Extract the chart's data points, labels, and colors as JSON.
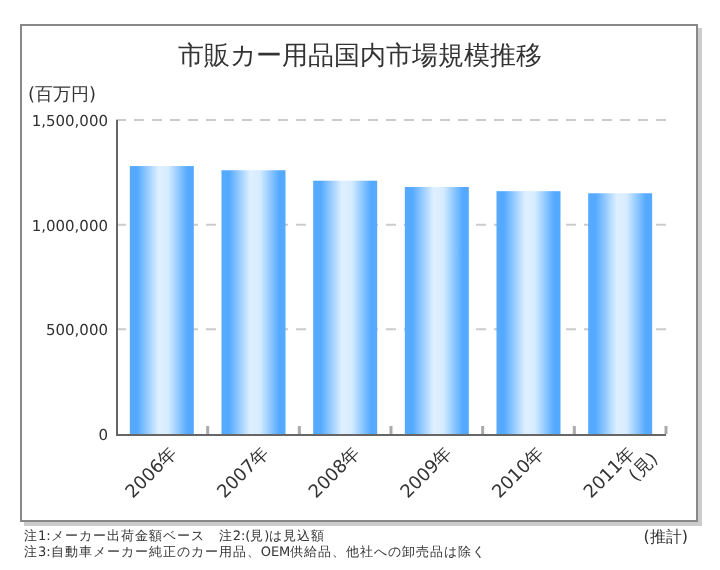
{
  "chart_data": {
    "type": "bar",
    "title": "市販カー用品国内市場規模推移",
    "ylabel": "(百万円)",
    "categories": [
      "2006年",
      "2007年",
      "2008年",
      "2009年",
      "2010年",
      "2011年\n(見)"
    ],
    "values": [
      1280000,
      1260000,
      1210000,
      1180000,
      1160000,
      1150000
    ],
    "color": "#55aaff",
    "ylim": [
      0,
      1500000
    ],
    "yticks": [
      {
        "value": 0,
        "label": "0"
      },
      {
        "value": 500000,
        "label": "500,000"
      },
      {
        "value": 1000000,
        "label": "1,000,000"
      },
      {
        "value": 1500000,
        "label": "1,500,000"
      }
    ],
    "grid": "y",
    "annotations": [
      "注1:メーカー出荷金額ベース　注2:(見)は見込額",
      "注3:自動車メーカー純正のカー用品、OEM供給品、他社への卸売品は除く",
      "(推計)"
    ]
  }
}
